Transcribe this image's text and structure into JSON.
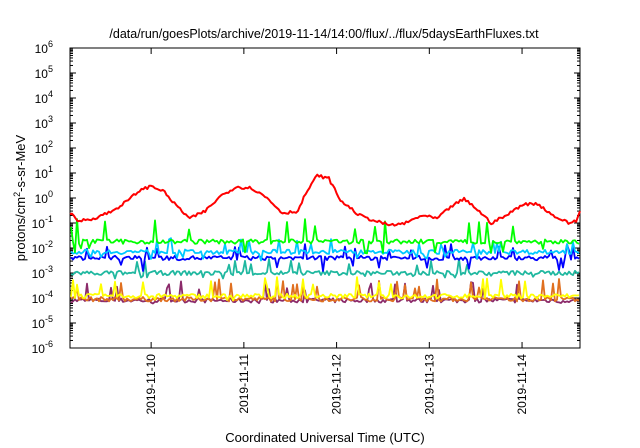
{
  "chart_data": {
    "type": "line",
    "title": "/data/run/goesPlots/archive/2019-11-14/14:00/flux/../flux/5daysEarthFluxes.txt",
    "xlabel": "Coordinated Universal Time (UTC)",
    "ylabel": {
      "base": "protons/cm",
      "sup": "2",
      "rest": "-s-sr-MeV"
    },
    "y_scale": "log",
    "ylim": [
      1e-06,
      1000000.0
    ],
    "y_ticks": [
      {
        "exp": "-6"
      },
      {
        "exp": "-5"
      },
      {
        "exp": "-4"
      },
      {
        "exp": "-3"
      },
      {
        "exp": "-2"
      },
      {
        "exp": "-1"
      },
      {
        "exp": "0"
      },
      {
        "exp": "1"
      },
      {
        "exp": "2"
      },
      {
        "exp": "3"
      },
      {
        "exp": "4"
      },
      {
        "exp": "5"
      },
      {
        "exp": "6"
      }
    ],
    "y_tick_base": "10",
    "xlim": [
      "2019-11-09 03:00",
      "2019-11-14 15:00"
    ],
    "x_ticks": [
      "2019-11-10",
      "2019-11-11",
      "2019-11-12",
      "2019-11-13",
      "2019-11-14"
    ],
    "grid": false,
    "legend": "none",
    "series": [
      {
        "color": "#ff0000",
        "baseline": 0.12,
        "x": [
          "2019-11-09 03:00",
          "2019-11-09 05:00",
          "2019-11-09 09:00",
          "2019-11-09 14:00",
          "2019-11-09 18:00",
          "2019-11-09 21:00",
          "2019-11-10 00:00",
          "2019-11-10 03:00",
          "2019-11-10 06:00",
          "2019-11-10 10:00",
          "2019-11-10 14:00",
          "2019-11-10 18:00",
          "2019-11-10 22:00",
          "2019-11-11 02:00",
          "2019-11-11 06:00",
          "2019-11-11 10:00",
          "2019-11-11 14:00",
          "2019-11-11 16:00",
          "2019-11-11 19:00",
          "2019-11-11 22:00",
          "2019-11-12 01:00",
          "2019-11-12 06:00",
          "2019-11-12 10:00",
          "2019-11-12 14:00",
          "2019-11-12 18:00",
          "2019-11-12 22:00",
          "2019-11-13 02:00",
          "2019-11-13 06:00",
          "2019-11-13 09:00",
          "2019-11-13 12:00",
          "2019-11-13 16:00",
          "2019-11-13 20:00",
          "2019-11-14 00:00",
          "2019-11-14 04:00",
          "2019-11-14 08:00",
          "2019-11-14 12:00",
          "2019-11-14 14:00",
          "2019-11-14 15:00"
        ],
        "values": [
          0.25,
          0.12,
          0.15,
          0.3,
          0.8,
          2.0,
          3.0,
          2.0,
          0.6,
          0.15,
          0.3,
          1.2,
          2.8,
          2.5,
          1.0,
          0.25,
          0.3,
          1.5,
          8.0,
          6.0,
          0.8,
          0.2,
          0.12,
          0.08,
          0.1,
          0.2,
          0.15,
          0.5,
          0.9,
          0.4,
          0.1,
          0.2,
          0.55,
          0.6,
          0.2,
          0.1,
          0.12,
          0.3
        ]
      },
      {
        "color": "#00ff00",
        "baseline": 0.018,
        "spike_to": 0.15,
        "min_to": 0.006
      },
      {
        "color": "#00c8ff",
        "baseline": 0.007,
        "spike_to": 0.025,
        "min_to": 0.003
      },
      {
        "color": "#0000ff",
        "baseline": 0.004,
        "spike_to": 0.015,
        "min_to": 0.0012
      },
      {
        "color": "#20b8a0",
        "baseline": 0.001,
        "spike_to": 0.004,
        "min_to": 0.0006
      },
      {
        "color": "#ffff00",
        "baseline": 0.00012,
        "spike_to": 0.0007,
        "min_to": 8e-05
      },
      {
        "color": "#e07020",
        "baseline": 9e-05,
        "spike_to": 0.0006,
        "min_to": 7e-05
      },
      {
        "color": "#8b2a6a",
        "baseline": 8e-05,
        "spike_to": 0.0005,
        "min_to": 6e-05
      }
    ]
  }
}
